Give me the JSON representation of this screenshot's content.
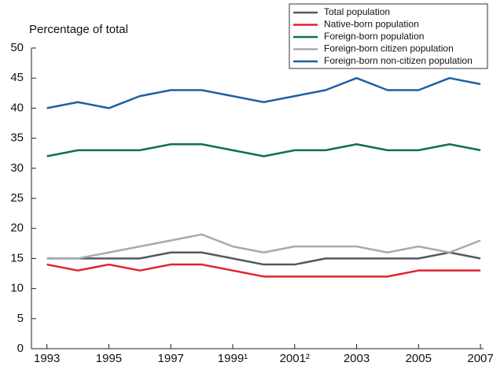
{
  "chart_data": {
    "type": "line",
    "y_label": "Percentage of total",
    "x": [
      1993,
      1994,
      1995,
      1996,
      1997,
      1998,
      1999,
      2000,
      2001,
      2002,
      2003,
      2004,
      2005,
      2006,
      2007
    ],
    "series": [
      {
        "name": "Total population",
        "color": "#55595d",
        "values": [
          15,
          15,
          15,
          15,
          16,
          16,
          15,
          14,
          14,
          15,
          15,
          15,
          15,
          16,
          15
        ]
      },
      {
        "name": "Native-born population",
        "color": "#e0232b",
        "values": [
          14,
          13,
          14,
          13,
          14,
          14,
          13,
          12,
          12,
          12,
          12,
          12,
          13,
          13,
          13
        ]
      },
      {
        "name": "Foreign-born population",
        "color": "#11704b",
        "values": [
          32,
          33,
          33,
          33,
          34,
          34,
          33,
          32,
          33,
          33,
          34,
          33,
          33,
          34,
          33
        ]
      },
      {
        "name": "Foreign-born citizen population",
        "color": "#a9aaac",
        "values": [
          15,
          15,
          16,
          17,
          18,
          19,
          17,
          16,
          17,
          17,
          17,
          16,
          17,
          16,
          18
        ]
      },
      {
        "name": "Foreign-born non-citizen population",
        "color": "#1f60a2",
        "values": [
          40,
          41,
          40,
          42,
          43,
          43,
          42,
          41,
          42,
          43,
          45,
          43,
          43,
          45,
          44
        ]
      }
    ],
    "xlim": [
      1992.5,
      2007.1
    ],
    "xticks": [
      1993,
      1995,
      1997,
      {
        "value": 1999,
        "label": "1999¹"
      },
      {
        "value": 2001,
        "label": "2001²"
      },
      2003,
      2005,
      2007
    ],
    "ylim": [
      0,
      50
    ],
    "yticks": [
      0,
      5,
      10,
      15,
      20,
      25,
      30,
      35,
      40,
      45,
      50
    ],
    "grid": false,
    "legend": "top-right"
  }
}
